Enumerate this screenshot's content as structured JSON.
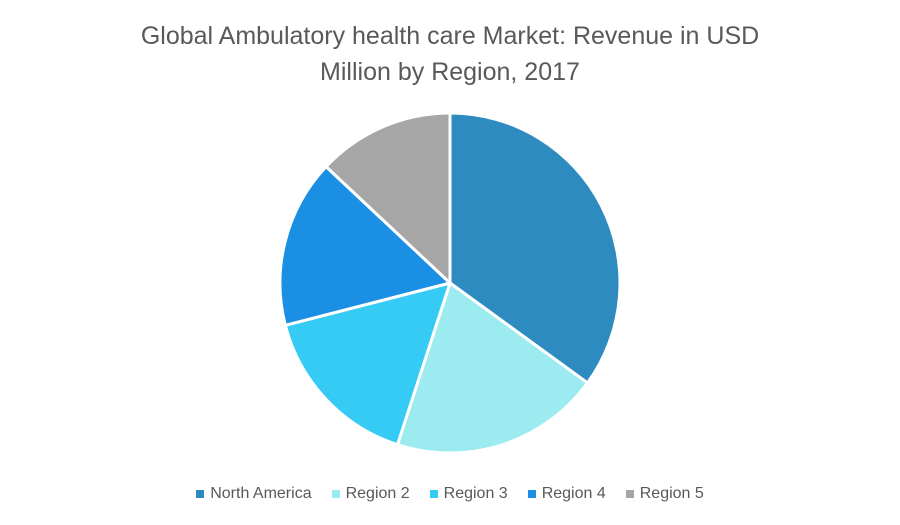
{
  "chart_data": {
    "type": "pie",
    "title_lines": [
      "Global Ambulatory health care Market: Revenue in USD",
      "Million by Region, 2017"
    ],
    "slices": [
      {
        "label": "North America",
        "value": 35,
        "color": "#2E8BC0"
      },
      {
        "label": "Region 2",
        "value": 20,
        "color": "#9BEBF0"
      },
      {
        "label": "Region 3",
        "value": 16,
        "color": "#36CBF5"
      },
      {
        "label": "Region 4",
        "value": 16,
        "color": "#1B8FE3"
      },
      {
        "label": "Region 5",
        "value": 13,
        "color": "#A6A6A6"
      }
    ],
    "legend_position": "bottom"
  }
}
